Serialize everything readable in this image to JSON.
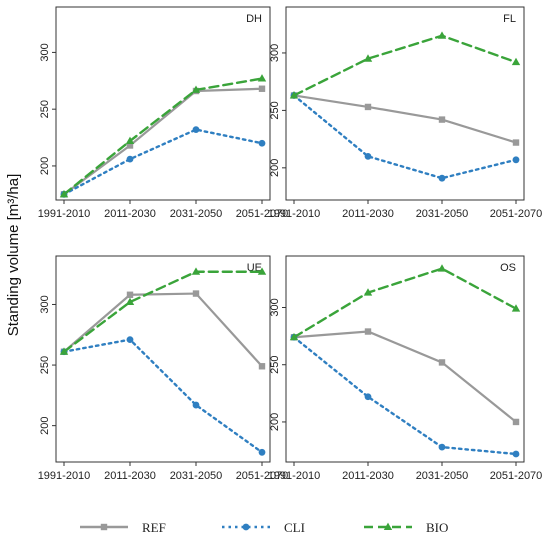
{
  "chart_data": {
    "type": "line",
    "ylabel": "Standing volume [m³/ha]",
    "categories": [
      "1991-2010",
      "2011-2030",
      "2031-2050",
      "2051-2070"
    ],
    "legend": {
      "placement": "bottom",
      "entries": [
        {
          "name": "REF",
          "color": "#999999",
          "dash": "solid",
          "marker": "square"
        },
        {
          "name": "CLI",
          "color": "#2f7fc1",
          "dash": "dotted",
          "marker": "circle"
        },
        {
          "name": "BIO",
          "color": "#3aa43a",
          "dash": "dashed",
          "marker": "triangle"
        }
      ]
    },
    "panels": [
      {
        "title": "DH",
        "yticks": [
          200,
          250,
          300
        ],
        "ylim": [
          170,
          340
        ],
        "series": [
          {
            "name": "REF",
            "values": [
              175,
              218,
              266,
              268
            ]
          },
          {
            "name": "CLI",
            "values": [
              175,
              206,
              232,
              220
            ]
          },
          {
            "name": "BIO",
            "values": [
              175,
              222,
              267,
              277
            ]
          }
        ]
      },
      {
        "title": "FL",
        "yticks": [
          200,
          250,
          300
        ],
        "ylim": [
          172,
          340
        ],
        "series": [
          {
            "name": "REF",
            "values": [
              263,
              253,
              242,
              222
            ]
          },
          {
            "name": "CLI",
            "values": [
              263,
              210,
              191,
              207
            ]
          },
          {
            "name": "BIO",
            "values": [
              263,
              295,
              315,
              292
            ]
          }
        ]
      },
      {
        "title": "UE",
        "yticks": [
          200,
          250,
          300
        ],
        "ylim": [
          170,
          340
        ],
        "series": [
          {
            "name": "REF",
            "values": [
              261,
              308,
              309,
              249
            ]
          },
          {
            "name": "CLI",
            "values": [
              261,
              271,
              217,
              178
            ]
          },
          {
            "name": "BIO",
            "values": [
              261,
              302,
              327,
              327
            ]
          }
        ]
      },
      {
        "title": "OS",
        "yticks": [
          200,
          250,
          300
        ],
        "ylim": [
          165,
          345
        ],
        "series": [
          {
            "name": "REF",
            "values": [
              274,
              279,
              252,
              200
            ]
          },
          {
            "name": "CLI",
            "values": [
              274,
              222,
              178,
              172
            ]
          },
          {
            "name": "BIO",
            "values": [
              274,
              313,
              334,
              299
            ]
          }
        ]
      }
    ]
  }
}
